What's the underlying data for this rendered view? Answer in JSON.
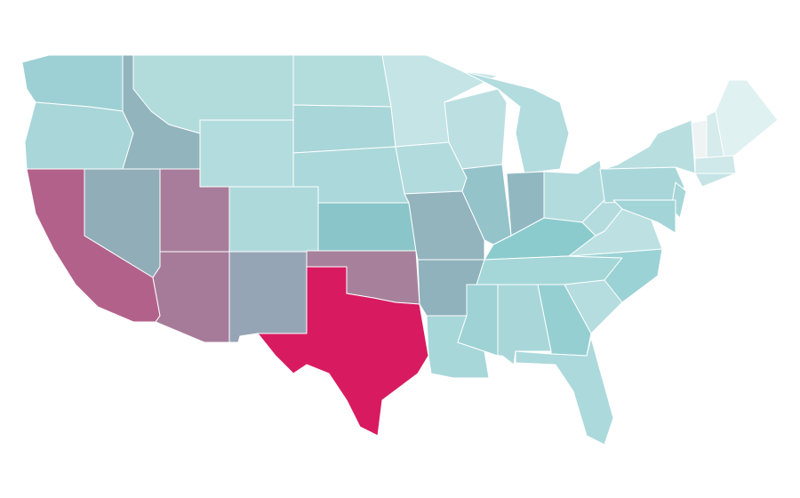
{
  "map": {
    "background": "#ffffff",
    "border_color": "#ffffff",
    "regions": [
      {
        "color": "#9dd0d4"
      },
      {
        "color": "#a9d6d8"
      },
      {
        "color": "#b2628a"
      },
      {
        "color": "#91adb8"
      },
      {
        "color": "#91b4bd"
      },
      {
        "color": "#b2dbdc"
      },
      {
        "color": "#b3dcde"
      },
      {
        "color": "#a87d9b"
      },
      {
        "color": "#aed9db"
      },
      {
        "color": "#a67b9a"
      },
      {
        "color": "#96a5b5"
      },
      {
        "color": "#b3dcdc"
      },
      {
        "color": "#a9d6d8"
      },
      {
        "color": "#abd8da"
      },
      {
        "color": "#8ac6c9"
      },
      {
        "color": "#a7819c"
      },
      {
        "color": "#d81b60"
      },
      {
        "color": "#c4e4e6"
      },
      {
        "color": "#b2dbdd"
      },
      {
        "color": "#93b3bd"
      },
      {
        "color": "#8fb2bc"
      },
      {
        "color": "#a8d7da"
      },
      {
        "color": "#bcdfe1"
      },
      {
        "color": "#95c3ca"
      },
      {
        "color": "#b3dcde"
      },
      {
        "color": "#91b8c1"
      },
      {
        "color": "#b2dbdd"
      },
      {
        "color": "#8ccbcd"
      },
      {
        "color": "#a5d7d8"
      },
      {
        "color": "#9ed2d5"
      },
      {
        "color": "#a9d7d9"
      },
      {
        "color": "#95cfd2"
      },
      {
        "color": "#acd9dc"
      },
      {
        "color": "#b5dddf"
      },
      {
        "color": "#9bd2d5"
      },
      {
        "color": "#bde1e3"
      },
      {
        "color": "#b4dcde"
      },
      {
        "color": "#a9d7d9"
      },
      {
        "color": "#b8dee0"
      },
      {
        "color": "#a6d6d8"
      },
      {
        "color": "#a3d4d7"
      },
      {
        "color": "#eef3f4"
      },
      {
        "color": "#d5ebec"
      },
      {
        "color": "#e0f1f2"
      },
      {
        "color": "#cfe8ea"
      },
      {
        "color": "#c6e4e6"
      }
    ]
  }
}
